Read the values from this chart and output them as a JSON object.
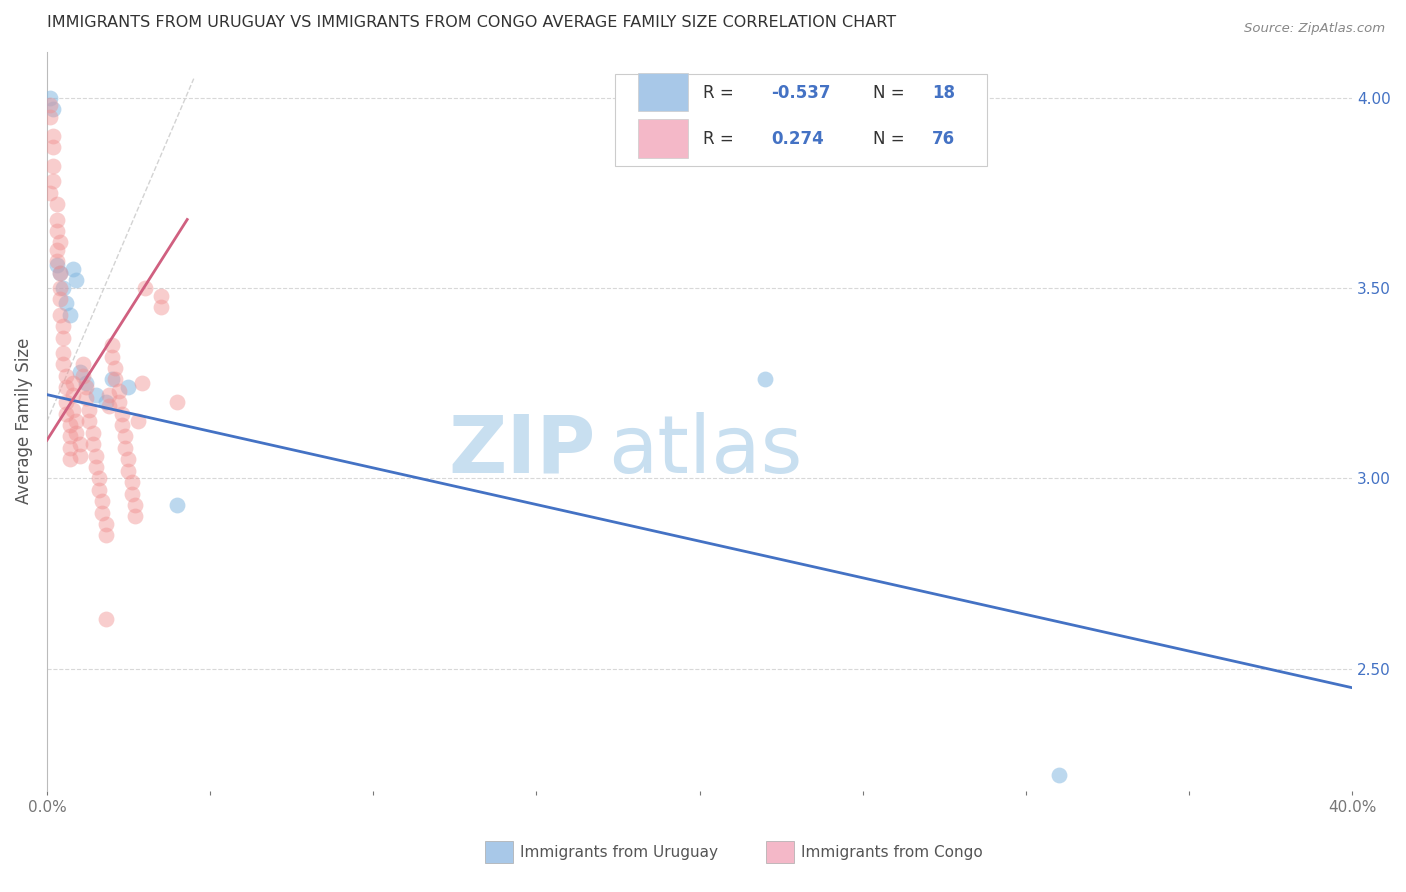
{
  "title": "IMMIGRANTS FROM URUGUAY VS IMMIGRANTS FROM CONGO AVERAGE FAMILY SIZE CORRELATION CHART",
  "source": "Source: ZipAtlas.com",
  "ylabel": "Average Family Size",
  "xlim": [
    0.0,
    0.4
  ],
  "ylim": [
    2.18,
    4.12
  ],
  "yticks_right": [
    2.5,
    3.0,
    3.5,
    4.0
  ],
  "xticks": [
    0.0,
    0.05,
    0.1,
    0.15,
    0.2,
    0.25,
    0.3,
    0.35,
    0.4
  ],
  "xtick_labels": [
    "0.0%",
    "",
    "",
    "",
    "",
    "",
    "",
    "",
    "40.0%"
  ],
  "watermark_zip": "ZIP",
  "watermark_atlas": "atlas",
  "uruguay_color": "#85b8e0",
  "congo_color": "#f09090",
  "uruguay_scatter": [
    [
      0.001,
      4.0
    ],
    [
      0.002,
      3.97
    ],
    [
      0.003,
      3.56
    ],
    [
      0.004,
      3.54
    ],
    [
      0.005,
      3.5
    ],
    [
      0.006,
      3.46
    ],
    [
      0.007,
      3.43
    ],
    [
      0.008,
      3.55
    ],
    [
      0.009,
      3.52
    ],
    [
      0.01,
      3.28
    ],
    [
      0.012,
      3.25
    ],
    [
      0.015,
      3.22
    ],
    [
      0.018,
      3.2
    ],
    [
      0.02,
      3.26
    ],
    [
      0.025,
      3.24
    ],
    [
      0.04,
      2.93
    ],
    [
      0.22,
      3.26
    ],
    [
      0.31,
      2.22
    ]
  ],
  "congo_scatter": [
    [
      0.001,
      3.98
    ],
    [
      0.001,
      3.95
    ],
    [
      0.002,
      3.82
    ],
    [
      0.002,
      3.78
    ],
    [
      0.003,
      3.72
    ],
    [
      0.003,
      3.68
    ],
    [
      0.003,
      3.6
    ],
    [
      0.003,
      3.57
    ],
    [
      0.004,
      3.54
    ],
    [
      0.004,
      3.5
    ],
    [
      0.004,
      3.47
    ],
    [
      0.004,
      3.43
    ],
    [
      0.005,
      3.4
    ],
    [
      0.005,
      3.37
    ],
    [
      0.005,
      3.33
    ],
    [
      0.005,
      3.3
    ],
    [
      0.006,
      3.27
    ],
    [
      0.006,
      3.24
    ],
    [
      0.006,
      3.2
    ],
    [
      0.006,
      3.17
    ],
    [
      0.007,
      3.14
    ],
    [
      0.007,
      3.11
    ],
    [
      0.007,
      3.08
    ],
    [
      0.007,
      3.05
    ],
    [
      0.008,
      3.25
    ],
    [
      0.008,
      3.22
    ],
    [
      0.008,
      3.18
    ],
    [
      0.009,
      3.15
    ],
    [
      0.009,
      3.12
    ],
    [
      0.01,
      3.09
    ],
    [
      0.01,
      3.06
    ],
    [
      0.011,
      3.3
    ],
    [
      0.011,
      3.27
    ],
    [
      0.012,
      3.24
    ],
    [
      0.012,
      3.21
    ],
    [
      0.013,
      3.18
    ],
    [
      0.013,
      3.15
    ],
    [
      0.014,
      3.12
    ],
    [
      0.014,
      3.09
    ],
    [
      0.015,
      3.06
    ],
    [
      0.015,
      3.03
    ],
    [
      0.016,
      3.0
    ],
    [
      0.016,
      2.97
    ],
    [
      0.017,
      2.94
    ],
    [
      0.017,
      2.91
    ],
    [
      0.018,
      2.88
    ],
    [
      0.018,
      2.85
    ],
    [
      0.019,
      3.22
    ],
    [
      0.019,
      3.19
    ],
    [
      0.02,
      3.35
    ],
    [
      0.02,
      3.32
    ],
    [
      0.021,
      3.29
    ],
    [
      0.021,
      3.26
    ],
    [
      0.022,
      3.23
    ],
    [
      0.022,
      3.2
    ],
    [
      0.023,
      3.17
    ],
    [
      0.023,
      3.14
    ],
    [
      0.024,
      3.11
    ],
    [
      0.024,
      3.08
    ],
    [
      0.025,
      3.05
    ],
    [
      0.025,
      3.02
    ],
    [
      0.026,
      2.99
    ],
    [
      0.026,
      2.96
    ],
    [
      0.027,
      2.93
    ],
    [
      0.027,
      2.9
    ],
    [
      0.028,
      3.15
    ],
    [
      0.029,
      3.25
    ],
    [
      0.03,
      3.5
    ],
    [
      0.002,
      3.9
    ],
    [
      0.003,
      3.65
    ],
    [
      0.002,
      3.87
    ],
    [
      0.018,
      2.63
    ],
    [
      0.004,
      3.62
    ],
    [
      0.035,
      3.48
    ],
    [
      0.035,
      3.45
    ],
    [
      0.04,
      3.2
    ],
    [
      0.001,
      3.75
    ]
  ],
  "uruguay_line": {
    "x0": 0.0,
    "y0": 3.22,
    "x1": 0.4,
    "y1": 2.45
  },
  "congo_line": {
    "x0": 0.0,
    "y0": 3.1,
    "x1": 0.043,
    "y1": 3.68
  },
  "ref_line": {
    "x0": 0.0,
    "y0": 3.15,
    "x1": 0.045,
    "y1": 4.05
  },
  "uruguay_line_color": "#4472c4",
  "congo_line_color": "#d06080",
  "ref_line_color": "#c8c8c8",
  "grid_color": "#d8d8d8",
  "title_color": "#333333",
  "right_axis_color": "#4472c4",
  "legend_box_color": "#f0f0f0",
  "legend_border_color": "#cccccc",
  "legend_r_color": "#4472c4",
  "legend_n_color": "#4472c4",
  "uruguay_legend_color": "#a8c8e8",
  "congo_legend_color": "#f4b8c8",
  "watermark_color": "#c8dff0"
}
